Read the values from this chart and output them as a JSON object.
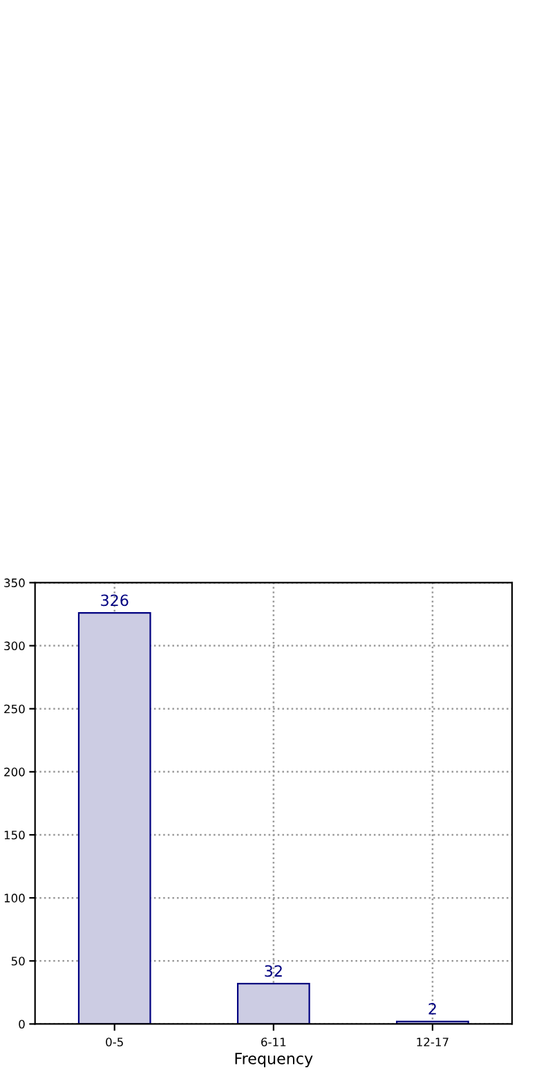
{
  "chart_data": {
    "type": "bar",
    "xlabel": "Frequency",
    "categories": [
      "0-5",
      "6-11",
      "12-17"
    ],
    "values": [
      326,
      32,
      2
    ],
    "color": "#ccccE3",
    "ylim": [
      0,
      350
    ],
    "yticks": [
      0,
      50,
      100,
      150,
      200,
      250,
      300,
      350
    ],
    "grid": true,
    "data_labels": true
  }
}
